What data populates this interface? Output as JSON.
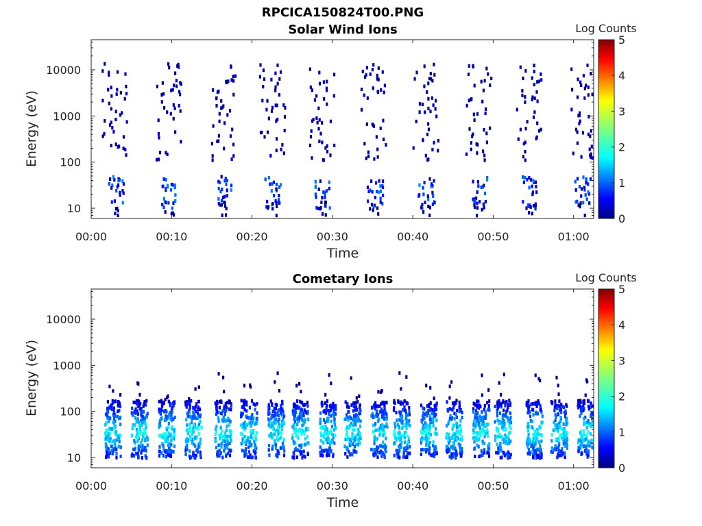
{
  "figure": {
    "title": "RPCICA150824T00.PNG"
  },
  "chart_data": [
    {
      "type": "heatmap",
      "title": "Solar Wind Ions",
      "xlabel": "Time",
      "ylabel": "Energy (eV)",
      "y_scale": "log",
      "xlim_minutes": [
        0,
        62.5
      ],
      "ylim": [
        6,
        45000
      ],
      "x_ticks": [
        "00:00",
        "00:10",
        "00:20",
        "00:30",
        "00:40",
        "00:50",
        "01:00"
      ],
      "x_tick_minutes": [
        0,
        10,
        20,
        30,
        40,
        50,
        60
      ],
      "y_ticks": [
        "10",
        "100",
        "1000",
        "10000"
      ],
      "y_tick_values": [
        10,
        100,
        1000,
        10000
      ],
      "colorbar": {
        "label": "Log Counts",
        "range": [
          0,
          5
        ],
        "ticks": [
          "0",
          "1",
          "2",
          "3",
          "4",
          "5"
        ],
        "colormap": "jet"
      },
      "burst_minutes": [
        2.8,
        9.5,
        16.3,
        22.3,
        28.5,
        35.0,
        41.4,
        48.0,
        54.2,
        60.8
      ],
      "description_of_pattern": "sparse low counts (~0-0.5 log) scattered 100-20000 eV, denser low-energy (10-40 eV) patches with up to ~1.3 log counts in each burst"
    },
    {
      "type": "heatmap",
      "title": "Cometary Ions",
      "xlabel": "Time",
      "ylabel": "Energy (eV)",
      "y_scale": "log",
      "xlim_minutes": [
        0,
        62.5
      ],
      "ylim": [
        6,
        45000
      ],
      "x_ticks": [
        "00:00",
        "00:10",
        "00:20",
        "00:30",
        "00:40",
        "00:50",
        "01:00"
      ],
      "x_tick_minutes": [
        0,
        10,
        20,
        30,
        40,
        50,
        60
      ],
      "y_ticks": [
        "10",
        "100",
        "1000",
        "10000"
      ],
      "y_tick_values": [
        10,
        100,
        1000,
        10000
      ],
      "colorbar": {
        "label": "Log Counts",
        "range": [
          0,
          5
        ],
        "ticks": [
          "0",
          "1",
          "2",
          "3",
          "4",
          "5"
        ],
        "colormap": "jet"
      },
      "burst_minutes": [
        2.5,
        5.8,
        9.2,
        12.5,
        16.2,
        19.4,
        22.8,
        25.8,
        29.2,
        32.3,
        35.6,
        38.4,
        41.8,
        44.9,
        48.3,
        51.0,
        54.9,
        58.0,
        61.3
      ],
      "description_of_pattern": "repeating bursts from ~8 to ~200 eV with peak ~1.5-2 log counts near 25-40 eV, a few isolated counts up to ~1000 eV"
    }
  ]
}
